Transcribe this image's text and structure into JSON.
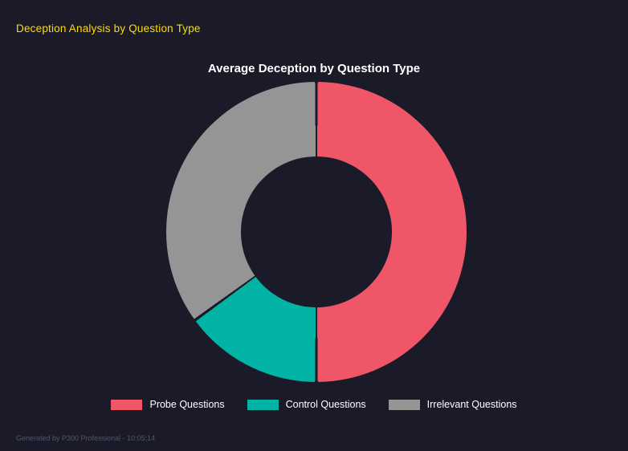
{
  "page": {
    "header": "Deception Analysis by Question Type",
    "header_color": "#ffdd00",
    "background": "#1a1a28",
    "footer": "Generated by P300 Professional - 10:05:14"
  },
  "chart_data": {
    "type": "pie",
    "variant": "donut",
    "title": "Average Deception by Question Type",
    "categories": [
      "Probe Questions",
      "Control Questions",
      "Irrelevant Questions"
    ],
    "values": [
      50,
      15,
      35
    ],
    "colors": [
      "#ef5668",
      "#00b3a4",
      "#959595"
    ],
    "start_angle_deg": 0,
    "direction": "clockwise",
    "inner_radius_pct": 50,
    "legend_position": "bottom"
  }
}
